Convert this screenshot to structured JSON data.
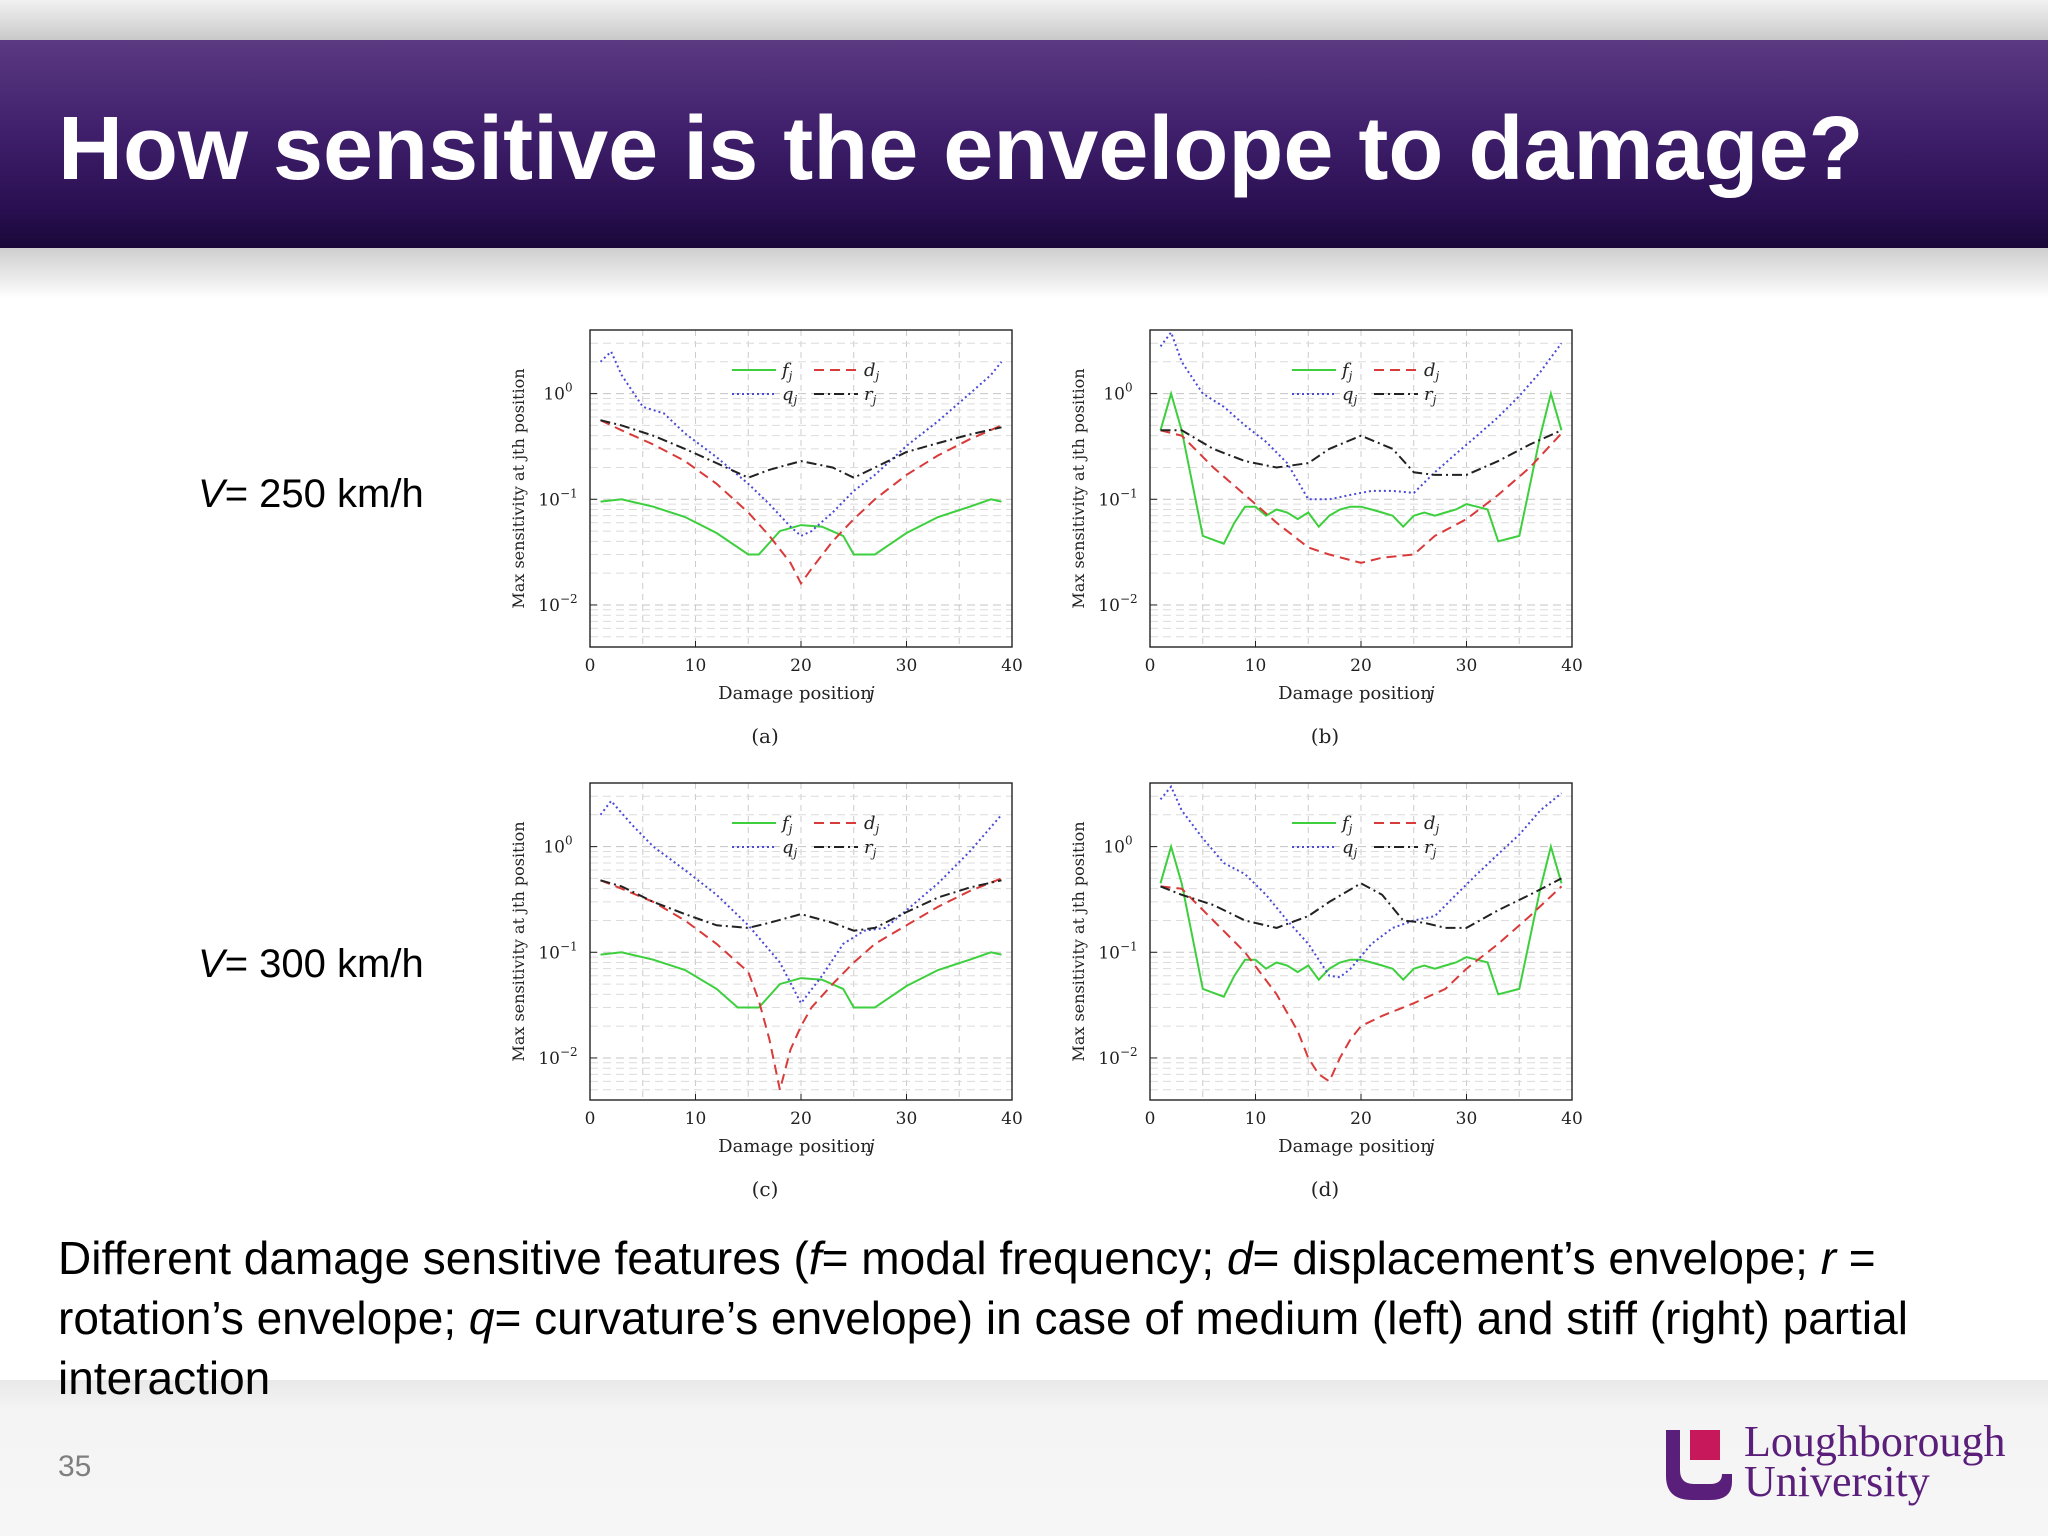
{
  "header": {
    "title": "How sensitive is the envelope to damage?"
  },
  "rows": [
    {
      "prefix": "V",
      "suffix": "= 250 km/h"
    },
    {
      "prefix": "V",
      "suffix": "= 300 km/h"
    }
  ],
  "caption": {
    "p1": "Different damage sensitive features (",
    "f": "f",
    "p2": "= modal frequency; ",
    "d": "d",
    "p3": "= displacement’s envelope; ",
    "r": "r",
    "p4": " = rotation’s envelope; ",
    "q": "q",
    "p5": "= curvature’s envelope) in case of medium (left) and stiff (right) partial interaction"
  },
  "slide_number": "35",
  "logo": {
    "line1": "Loughborough",
    "line2": "University"
  },
  "colors": {
    "header": "#3f1f6b",
    "f": "#3ecf3e",
    "d": "#d93a3a",
    "q": "#4a4ad6",
    "r": "#222222",
    "logo": "#5a1f7a",
    "logo_accent": "#c8185c"
  },
  "chart_data": [
    {
      "type": "line",
      "panel": "(a)",
      "xlabel": "Damage position j",
      "ylabel": "Max sensitivity at jth position",
      "xlim": [
        0,
        40
      ],
      "ylim": [
        0.004,
        4
      ],
      "yscale": "log",
      "xticks": [
        0,
        10,
        20,
        30,
        40
      ],
      "yticks": [
        "10^0",
        "10^-1",
        "10^-2"
      ],
      "legend": "top-center",
      "grid": true,
      "series": [
        {
          "name": "f_j",
          "x": [
            1,
            3,
            6,
            9,
            12,
            15,
            16,
            18,
            20,
            22,
            24,
            25,
            27,
            30,
            33,
            36,
            38,
            39
          ],
          "y": [
            0.095,
            0.1,
            0.085,
            0.068,
            0.048,
            0.03,
            0.03,
            0.05,
            0.057,
            0.055,
            0.045,
            0.03,
            0.03,
            0.048,
            0.068,
            0.085,
            0.1,
            0.095
          ]
        },
        {
          "name": "d_j",
          "x": [
            1,
            3,
            6,
            9,
            12,
            15,
            17,
            19,
            20,
            21,
            23,
            25,
            27,
            30,
            33,
            36,
            39
          ],
          "y": [
            0.56,
            0.45,
            0.33,
            0.23,
            0.14,
            0.075,
            0.045,
            0.025,
            0.016,
            0.022,
            0.04,
            0.065,
            0.1,
            0.17,
            0.26,
            0.37,
            0.5
          ]
        },
        {
          "name": "q_j",
          "x": [
            1,
            2,
            3,
            5,
            7,
            9,
            12,
            15,
            17,
            19,
            20,
            21,
            23,
            25,
            27,
            30,
            33,
            36,
            38,
            39
          ],
          "y": [
            2.0,
            2.5,
            1.5,
            0.75,
            0.65,
            0.42,
            0.25,
            0.14,
            0.09,
            0.055,
            0.045,
            0.05,
            0.075,
            0.12,
            0.17,
            0.32,
            0.55,
            1.0,
            1.5,
            2.0
          ]
        },
        {
          "name": "r_j",
          "x": [
            1,
            3,
            6,
            9,
            12,
            15,
            17,
            20,
            23,
            25,
            27,
            30,
            33,
            36,
            39
          ],
          "y": [
            0.56,
            0.5,
            0.4,
            0.3,
            0.22,
            0.16,
            0.19,
            0.23,
            0.2,
            0.16,
            0.2,
            0.28,
            0.34,
            0.41,
            0.48
          ]
        }
      ]
    },
    {
      "type": "line",
      "panel": "(b)",
      "xlabel": "Damage position j",
      "ylabel": "Max sensitivity at jth position",
      "xlim": [
        0,
        40
      ],
      "ylim": [
        0.004,
        4
      ],
      "yscale": "log",
      "xticks": [
        0,
        10,
        20,
        30,
        40
      ],
      "yticks": [
        "10^0",
        "10^-1",
        "10^-2"
      ],
      "legend": "top-center",
      "grid": true,
      "series": [
        {
          "name": "f_j",
          "x": [
            1,
            2,
            3,
            5,
            7,
            8,
            9,
            10,
            11,
            12,
            13,
            14,
            15,
            16,
            17,
            18,
            19,
            20,
            21,
            22,
            23,
            24,
            25,
            26,
            27,
            28,
            29,
            30,
            31,
            32,
            33,
            35,
            37,
            38,
            39
          ],
          "y": [
            0.45,
            1.0,
            0.45,
            0.045,
            0.038,
            0.06,
            0.085,
            0.085,
            0.07,
            0.08,
            0.075,
            0.065,
            0.075,
            0.055,
            0.07,
            0.08,
            0.085,
            0.085,
            0.08,
            0.075,
            0.07,
            0.055,
            0.07,
            0.075,
            0.07,
            0.075,
            0.08,
            0.09,
            0.085,
            0.08,
            0.04,
            0.045,
            0.4,
            1.0,
            0.45
          ]
        },
        {
          "name": "d_j",
          "x": [
            1,
            3,
            6,
            9,
            12,
            15,
            17,
            20,
            22,
            25,
            27,
            30,
            33,
            36,
            39
          ],
          "y": [
            0.45,
            0.4,
            0.2,
            0.11,
            0.06,
            0.035,
            0.03,
            0.025,
            0.028,
            0.03,
            0.045,
            0.065,
            0.11,
            0.2,
            0.42
          ]
        },
        {
          "name": "q_j",
          "x": [
            1,
            2,
            3,
            5,
            7,
            9,
            11,
            13,
            15,
            17,
            19,
            21,
            23,
            25,
            27,
            29,
            31,
            33,
            35,
            37,
            39
          ],
          "y": [
            2.8,
            3.8,
            2.0,
            1.0,
            0.75,
            0.5,
            0.35,
            0.22,
            0.1,
            0.1,
            0.11,
            0.12,
            0.12,
            0.115,
            0.18,
            0.27,
            0.4,
            0.6,
            0.95,
            1.6,
            3.0
          ]
        },
        {
          "name": "r_j",
          "x": [
            1,
            3,
            6,
            9,
            12,
            15,
            17,
            20,
            23,
            25,
            27,
            30,
            33,
            36,
            39
          ],
          "y": [
            0.45,
            0.45,
            0.3,
            0.23,
            0.2,
            0.22,
            0.3,
            0.4,
            0.3,
            0.18,
            0.17,
            0.17,
            0.23,
            0.33,
            0.45
          ]
        }
      ]
    },
    {
      "type": "line",
      "panel": "(c)",
      "xlabel": "Damage position j",
      "ylabel": "Max sensitivity at jth position",
      "xlim": [
        0,
        40
      ],
      "ylim": [
        0.004,
        4
      ],
      "yscale": "log",
      "xticks": [
        0,
        10,
        20,
        30,
        40
      ],
      "yticks": [
        "10^0",
        "10^-1",
        "10^-2"
      ],
      "legend": "top-center",
      "grid": true,
      "series": [
        {
          "name": "f_j",
          "x": [
            1,
            3,
            6,
            9,
            12,
            14,
            16,
            18,
            20,
            22,
            24,
            25,
            27,
            30,
            33,
            36,
            38,
            39
          ],
          "y": [
            0.095,
            0.1,
            0.085,
            0.068,
            0.045,
            0.03,
            0.03,
            0.05,
            0.057,
            0.055,
            0.045,
            0.03,
            0.03,
            0.048,
            0.068,
            0.085,
            0.1,
            0.095
          ]
        },
        {
          "name": "d_j",
          "x": [
            1,
            3,
            6,
            9,
            12,
            15,
            16,
            17,
            18,
            19,
            20,
            21,
            23,
            25,
            27,
            30,
            33,
            36,
            39
          ],
          "y": [
            0.48,
            0.4,
            0.3,
            0.2,
            0.12,
            0.065,
            0.035,
            0.015,
            0.005,
            0.012,
            0.02,
            0.03,
            0.05,
            0.08,
            0.12,
            0.18,
            0.27,
            0.38,
            0.5
          ]
        },
        {
          "name": "q_j",
          "x": [
            1,
            2,
            4,
            6,
            9,
            12,
            15,
            18,
            20,
            22,
            24,
            26,
            28,
            30,
            33,
            36,
            39
          ],
          "y": [
            2.0,
            2.7,
            1.6,
            1.0,
            0.6,
            0.35,
            0.18,
            0.08,
            0.033,
            0.06,
            0.12,
            0.16,
            0.17,
            0.25,
            0.45,
            0.9,
            2.0
          ]
        },
        {
          "name": "r_j",
          "x": [
            1,
            3,
            6,
            9,
            12,
            15,
            17,
            20,
            23,
            25,
            27,
            30,
            33,
            36,
            39
          ],
          "y": [
            0.48,
            0.42,
            0.3,
            0.23,
            0.18,
            0.17,
            0.19,
            0.23,
            0.19,
            0.16,
            0.17,
            0.24,
            0.33,
            0.41,
            0.48
          ]
        }
      ]
    },
    {
      "type": "line",
      "panel": "(d)",
      "xlabel": "Damage position j",
      "ylabel": "Max sensitivity at jth position",
      "xlim": [
        0,
        40
      ],
      "ylim": [
        0.004,
        4
      ],
      "yscale": "log",
      "xticks": [
        0,
        10,
        20,
        30,
        40
      ],
      "yticks": [
        "10^0",
        "10^-1",
        "10^-2"
      ],
      "legend": "top-center",
      "grid": true,
      "series": [
        {
          "name": "f_j",
          "x": [
            1,
            2,
            3,
            5,
            7,
            8,
            9,
            10,
            11,
            12,
            13,
            14,
            15,
            16,
            17,
            18,
            19,
            20,
            21,
            22,
            23,
            24,
            25,
            26,
            27,
            28,
            29,
            30,
            31,
            32,
            33,
            35,
            37,
            38,
            39
          ],
          "y": [
            0.45,
            1.0,
            0.45,
            0.045,
            0.038,
            0.06,
            0.085,
            0.085,
            0.07,
            0.08,
            0.075,
            0.065,
            0.075,
            0.055,
            0.07,
            0.08,
            0.085,
            0.085,
            0.08,
            0.075,
            0.07,
            0.055,
            0.07,
            0.075,
            0.07,
            0.075,
            0.08,
            0.09,
            0.085,
            0.08,
            0.04,
            0.045,
            0.4,
            1.0,
            0.45
          ]
        },
        {
          "name": "d_j",
          "x": [
            1,
            3,
            6,
            9,
            12,
            14,
            15,
            16,
            17,
            18,
            19,
            20,
            22,
            25,
            28,
            30,
            33,
            36,
            39
          ],
          "y": [
            0.42,
            0.4,
            0.2,
            0.1,
            0.04,
            0.018,
            0.01,
            0.007,
            0.006,
            0.01,
            0.015,
            0.02,
            0.025,
            0.033,
            0.045,
            0.07,
            0.12,
            0.22,
            0.42
          ]
        },
        {
          "name": "q_j",
          "x": [
            1,
            2,
            3,
            5,
            7,
            9,
            11,
            13,
            15,
            17,
            18,
            19,
            21,
            23,
            25,
            27,
            29,
            31,
            33,
            35,
            37,
            39
          ],
          "y": [
            2.8,
            3.7,
            2.2,
            1.2,
            0.7,
            0.55,
            0.35,
            0.2,
            0.12,
            0.06,
            0.058,
            0.07,
            0.12,
            0.17,
            0.2,
            0.22,
            0.35,
            0.55,
            0.85,
            1.3,
            2.2,
            3.2
          ]
        },
        {
          "name": "r_j",
          "x": [
            1,
            3,
            6,
            9,
            12,
            15,
            17,
            20,
            22,
            24,
            26,
            28,
            30,
            33,
            36,
            39
          ],
          "y": [
            0.42,
            0.35,
            0.28,
            0.2,
            0.17,
            0.22,
            0.3,
            0.45,
            0.35,
            0.2,
            0.19,
            0.17,
            0.17,
            0.25,
            0.35,
            0.5
          ]
        }
      ]
    }
  ]
}
